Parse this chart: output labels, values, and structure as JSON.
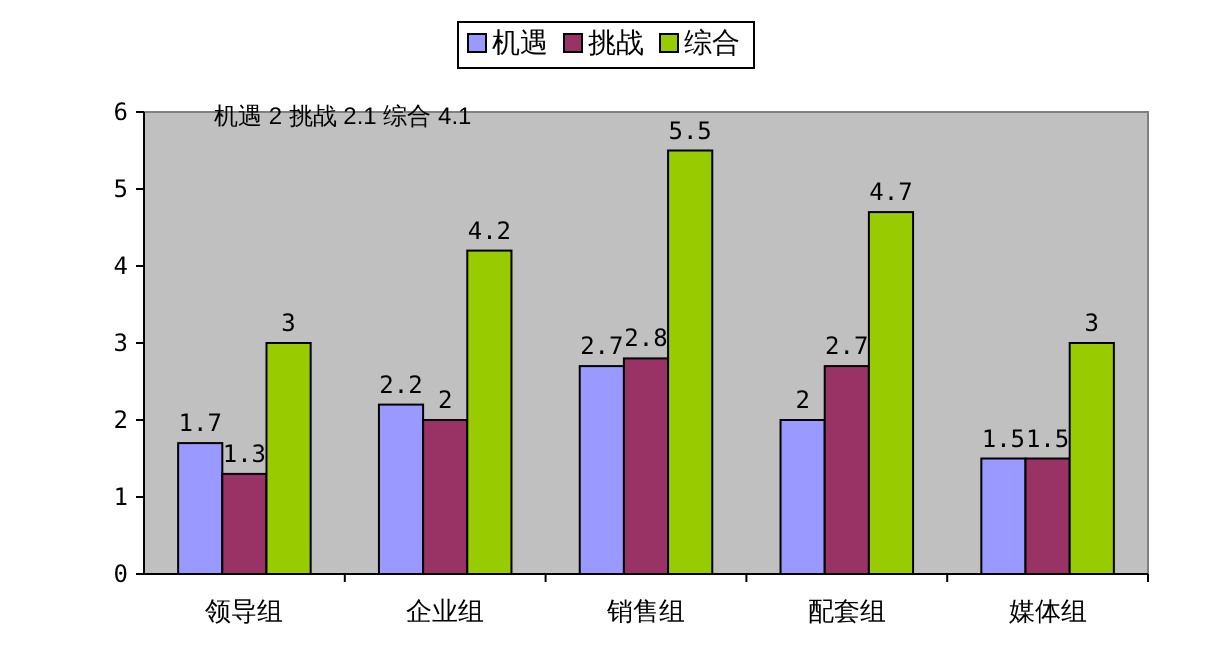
{
  "chart_data": {
    "type": "bar",
    "categories": [
      "领导组",
      "企业组",
      "销售组",
      "配套组",
      "媒体组"
    ],
    "series": [
      {
        "name": "机遇",
        "color": "#9999ff",
        "values": [
          1.7,
          2.2,
          2.7,
          2,
          1.5
        ]
      },
      {
        "name": "挑战",
        "color": "#993366",
        "values": [
          1.3,
          2,
          2.8,
          2.7,
          1.5
        ]
      },
      {
        "name": "综合",
        "color": "#99cc00",
        "values": [
          3,
          4.2,
          5.5,
          4.7,
          3
        ]
      }
    ],
    "ylim": [
      0,
      6
    ],
    "yticks": [
      0,
      1,
      2,
      3,
      4,
      5,
      6
    ],
    "data_labels": true,
    "legend": "top",
    "annotations": [
      "机遇 2  挑战 2.1    综合 4.1"
    ]
  }
}
